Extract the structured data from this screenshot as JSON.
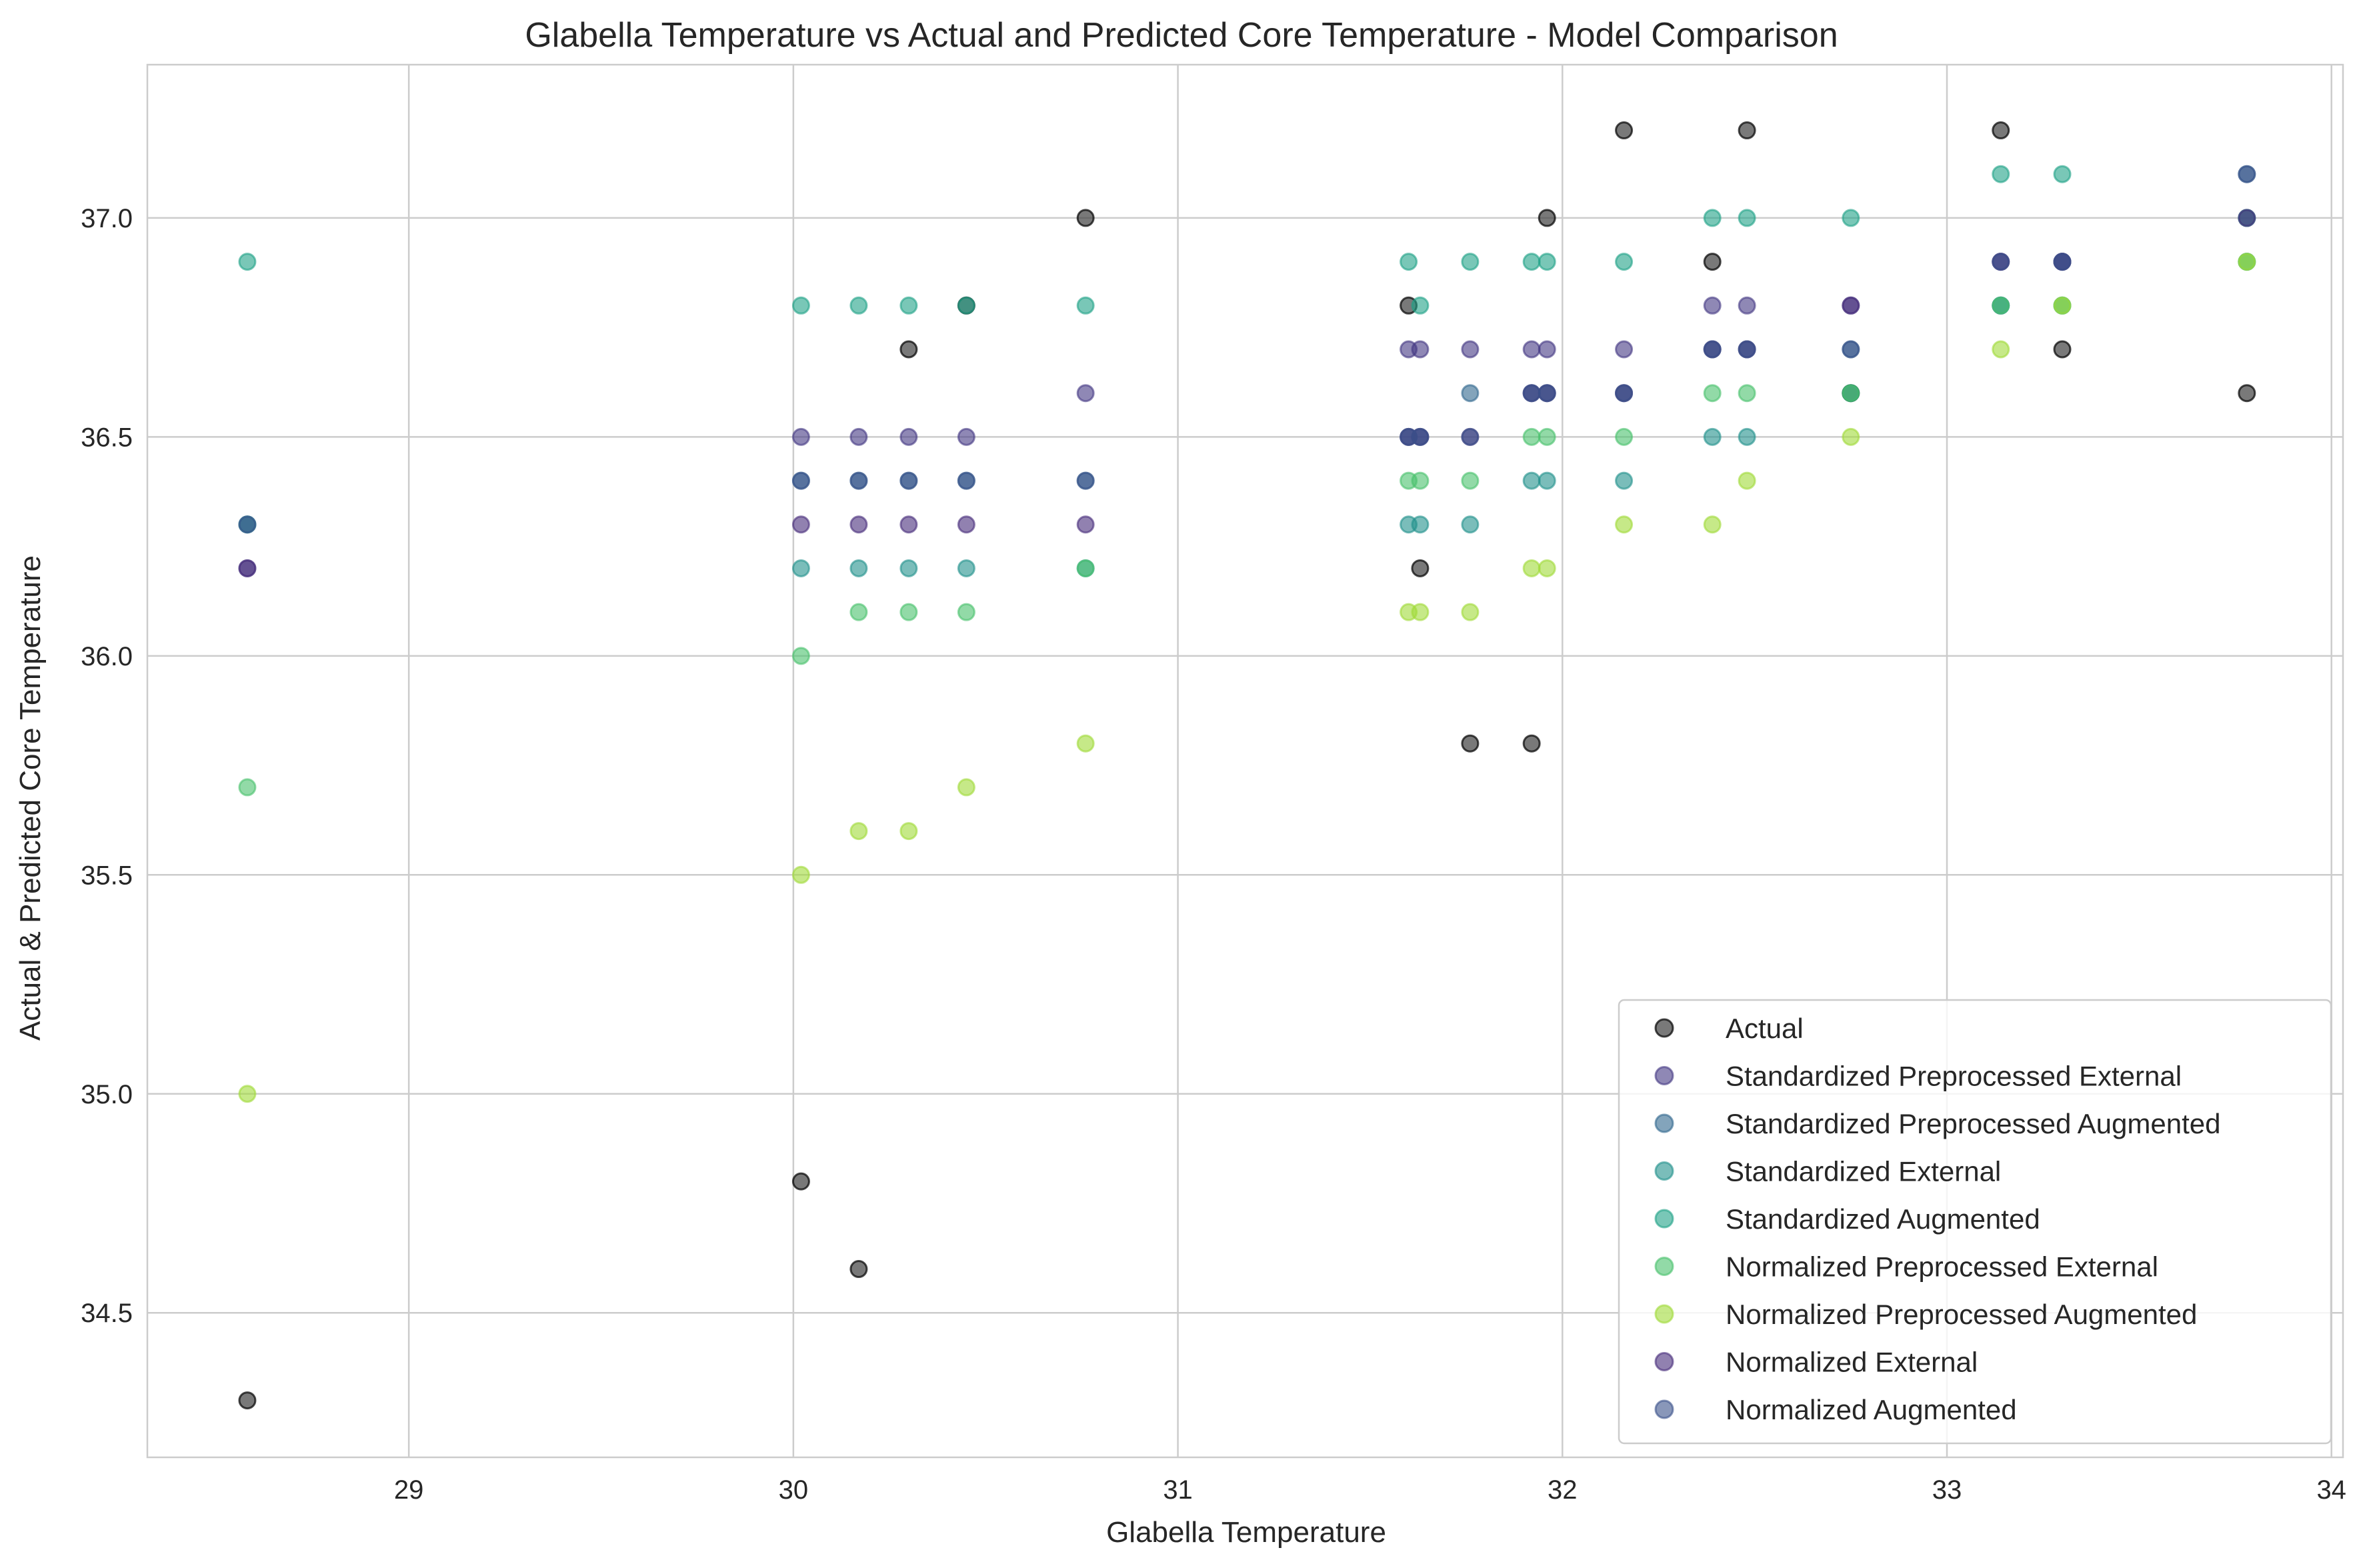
{
  "chart_data": {
    "type": "scatter",
    "title": "Glabella Temperature vs Actual and Predicted Core Temperature - Model Comparison",
    "xlabel": "Glabella Temperature",
    "ylabel": "Actual & Predicted Core Temperature",
    "xlim": [
      28.32,
      34.03
    ],
    "ylim": [
      34.17,
      37.35
    ],
    "xticks": [
      29,
      30,
      31,
      32,
      33,
      34
    ],
    "yticks": [
      34.5,
      35.0,
      35.5,
      36.0,
      36.5,
      37.0
    ],
    "xtick_labels": [
      "29",
      "30",
      "31",
      "32",
      "33",
      "34"
    ],
    "ytick_labels": [
      "34.5",
      "35.0",
      "35.5",
      "36.0",
      "36.5",
      "37.0"
    ],
    "grid": true,
    "legend_position": "lower-right",
    "x": [
      28.58,
      30.02,
      30.17,
      30.3,
      30.45,
      30.76,
      31.6,
      31.63,
      31.76,
      31.92,
      31.96,
      32.16,
      32.39,
      32.48,
      32.75,
      33.14,
      33.3,
      33.78
    ],
    "series": [
      {
        "name": "Actual",
        "color": "#404040",
        "y": [
          34.3,
          34.8,
          34.6,
          36.7,
          36.8,
          37.0,
          36.8,
          36.2,
          35.8,
          35.8,
          37.0,
          37.2,
          36.9,
          37.2,
          36.6,
          37.2,
          36.7,
          36.6
        ]
      },
      {
        "name": "Standardized Preprocessed External",
        "color": "#443983",
        "y": [
          36.2,
          36.5,
          36.5,
          36.5,
          36.5,
          36.6,
          36.7,
          36.7,
          36.7,
          36.7,
          36.7,
          36.7,
          36.8,
          36.8,
          36.8,
          36.9,
          36.9,
          37.0
        ]
      },
      {
        "name": "Standardized Preprocessed Augmented",
        "color": "#31688e",
        "y": [
          36.3,
          36.4,
          36.4,
          36.4,
          36.4,
          36.4,
          36.5,
          36.5,
          36.6,
          36.6,
          36.6,
          36.6,
          36.7,
          36.7,
          36.7,
          36.8,
          36.9,
          37.1
        ]
      },
      {
        "name": "Standardized External",
        "color": "#21918c",
        "y": [
          36.3,
          36.2,
          36.2,
          36.2,
          36.2,
          36.2,
          36.3,
          36.3,
          36.3,
          36.4,
          36.4,
          36.4,
          36.5,
          36.5,
          36.6,
          36.8,
          36.8,
          36.9
        ]
      },
      {
        "name": "Standardized Augmented",
        "color": "#1fa187",
        "y": [
          36.9,
          36.8,
          36.8,
          36.8,
          36.8,
          36.8,
          36.9,
          36.8,
          36.9,
          36.9,
          36.9,
          36.9,
          37.0,
          37.0,
          37.0,
          37.1,
          37.1,
          37.0
        ]
      },
      {
        "name": "Normalized Preprocessed External",
        "color": "#4ac16d",
        "y": [
          35.7,
          36.0,
          36.1,
          36.1,
          36.1,
          36.2,
          36.4,
          36.4,
          36.4,
          36.5,
          36.5,
          36.5,
          36.6,
          36.6,
          36.6,
          36.8,
          36.8,
          36.9
        ]
      },
      {
        "name": "Normalized Preprocessed Augmented",
        "color": "#a0da39",
        "y": [
          35.0,
          35.5,
          35.6,
          35.6,
          35.7,
          35.8,
          36.1,
          36.1,
          36.1,
          36.2,
          36.2,
          36.3,
          36.3,
          36.4,
          36.5,
          36.7,
          36.8,
          36.9
        ]
      },
      {
        "name": "Normalized External",
        "color": "#472d7b",
        "y": [
          36.2,
          36.3,
          36.3,
          36.3,
          36.3,
          36.3,
          36.5,
          36.5,
          36.5,
          36.6,
          36.6,
          36.6,
          36.7,
          36.7,
          36.8,
          36.9,
          36.9,
          37.0
        ]
      },
      {
        "name": "Normalized Augmented",
        "color": "#3b528b",
        "y": [
          36.3,
          36.4,
          36.4,
          36.4,
          36.4,
          36.4,
          36.5,
          36.5,
          36.5,
          36.6,
          36.6,
          36.6,
          36.7,
          36.7,
          36.7,
          36.9,
          36.9,
          37.1
        ]
      }
    ]
  }
}
